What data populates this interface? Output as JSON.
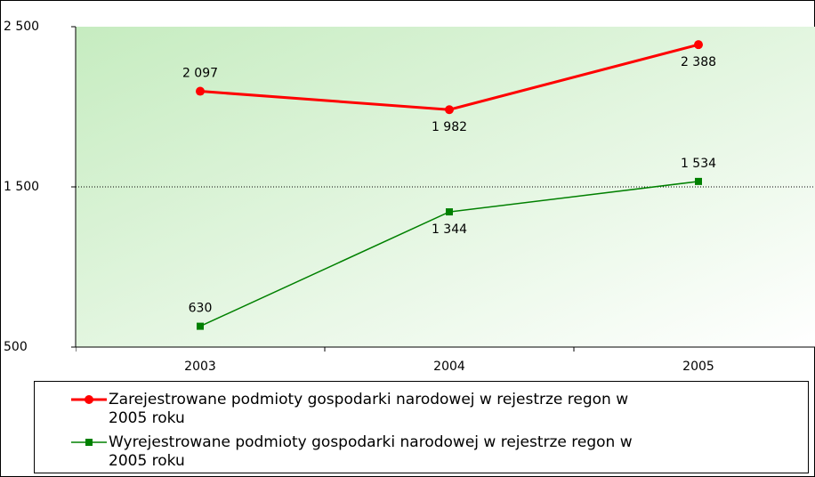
{
  "chart_data": {
    "type": "line",
    "categories": [
      "2003",
      "2004",
      "2005"
    ],
    "series": [
      {
        "name": "Zarejestrowane podmioty gospodarki narodowej w rejestrze regon w 2005 roku",
        "color": "#ff0000",
        "values": [
          2097,
          1982,
          2388
        ],
        "value_labels": [
          "2 097",
          "1 982",
          "2 388"
        ]
      },
      {
        "name": "Wyrejestrowane podmioty gospodarki narodowej w rejestrze regon w 2005 roku",
        "color": "#008000",
        "values": [
          630,
          1344,
          1534
        ],
        "value_labels": [
          "630",
          "1 344",
          "1 534"
        ]
      }
    ],
    "ylim": [
      500,
      2500
    ],
    "yticks": [
      {
        "value": 500,
        "label": "500"
      },
      {
        "value": 1500,
        "label": "1 500"
      },
      {
        "value": 2500,
        "label": "2 500"
      }
    ],
    "grid": true
  }
}
